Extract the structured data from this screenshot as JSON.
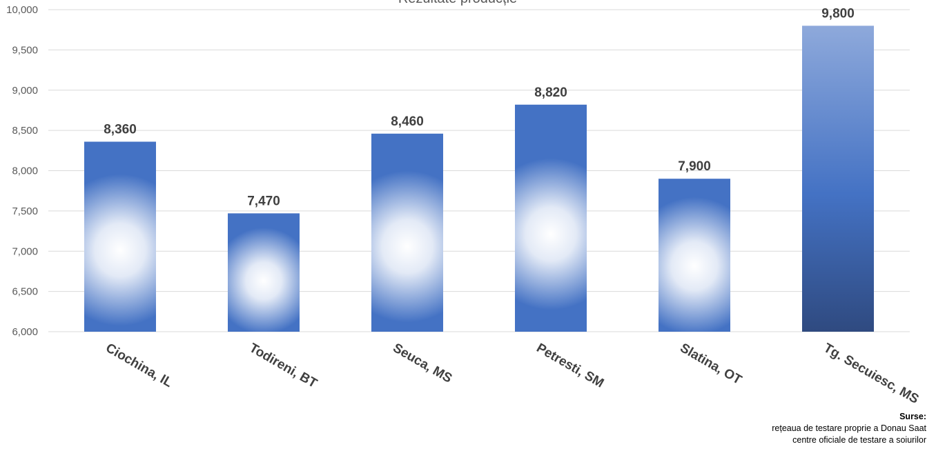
{
  "chart_data": {
    "type": "bar",
    "title": "Rezultate producție",
    "categories": [
      "Ciochina, IL",
      "Todireni, BT",
      "Seuca, MS",
      "Petresti, SM",
      "Slatina, OT",
      "Tg. Secuiesc, MS"
    ],
    "values": [
      8360,
      7470,
      8460,
      8820,
      7900,
      9800
    ],
    "data_labels": [
      "8,360",
      "7,470",
      "8,460",
      "8,820",
      "7,900",
      "9,800"
    ],
    "ylim": [
      6000,
      10000
    ],
    "yticks": [
      "6,000",
      "6,500",
      "7,000",
      "7,500",
      "8,000",
      "8,500",
      "9,000",
      "9,500",
      "10,000"
    ],
    "grid": true,
    "legend": "none",
    "xlabel": "",
    "ylabel": ""
  },
  "colors": {
    "bar": "#4472C4",
    "highlight": "#ffffff",
    "last_bar_top": "#8EA9DB",
    "last_bar_bottom": "#2F4A80",
    "grid": "#D9D9D9",
    "axis_text": "#595959",
    "label_text": "#404040"
  },
  "sources": {
    "title": "Surse:",
    "lines": [
      "rețeaua de testare proprie a Donau Saat",
      "centre oficiale de testare a soiurilor"
    ]
  }
}
